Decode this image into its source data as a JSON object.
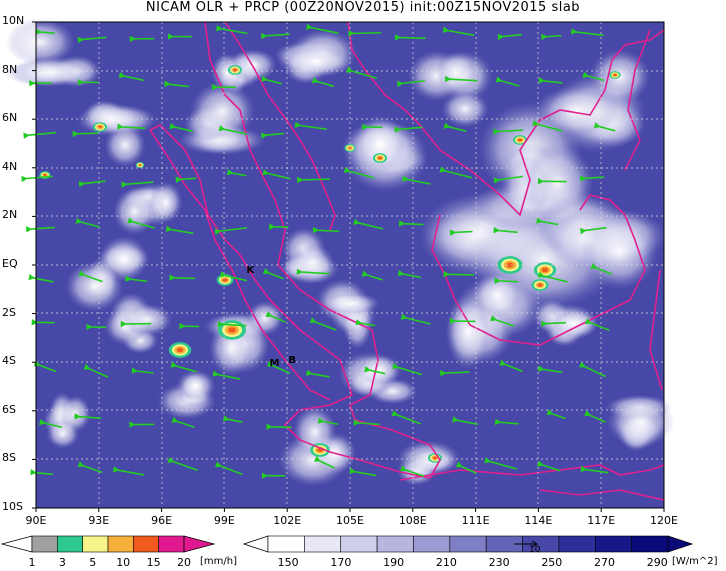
{
  "title": "NICAM OLR + PRCP (00Z20NOV2015) init:00Z15NOV2015 slab",
  "lat_labels": [
    "10N",
    "8N",
    "6N",
    "4N",
    "2N",
    "EQ",
    "2S",
    "4S",
    "6S",
    "8S",
    "10S"
  ],
  "lon_labels": [
    "90E",
    "93E",
    "96E",
    "99E",
    "102E",
    "105E",
    "108E",
    "111E",
    "114E",
    "117E",
    "120E"
  ],
  "markers": [
    {
      "label": "K",
      "lon": 100.2,
      "lat": -0.3
    },
    {
      "label": "M",
      "lon": 101.3,
      "lat": -4.1
    },
    {
      "label": "B",
      "lon": 102.2,
      "lat": -4.0
    }
  ],
  "precip_colorbar": {
    "ticks": [
      "1",
      "3",
      "5",
      "10",
      "15",
      "20"
    ],
    "unit": "[mm/h]",
    "colors": [
      "#a0a0a0",
      "#2ec98e",
      "#f7f58a",
      "#f5b03a",
      "#f05a1c",
      "#e01a8e"
    ]
  },
  "olr_colorbar": {
    "ticks": [
      "150",
      "170",
      "190",
      "210",
      "230",
      "250",
      "270",
      "290"
    ],
    "unit": "[W/m^2]",
    "colors": [
      "#ffffff",
      "#e7e7f5",
      "#cfcfeb",
      "#b6b6df",
      "#9b9bd3",
      "#7f7fc6",
      "#6363b7",
      "#4848a8",
      "#2f2f99",
      "#18188a",
      "#0a0a78"
    ]
  },
  "wind_vector_reference": "10"
}
